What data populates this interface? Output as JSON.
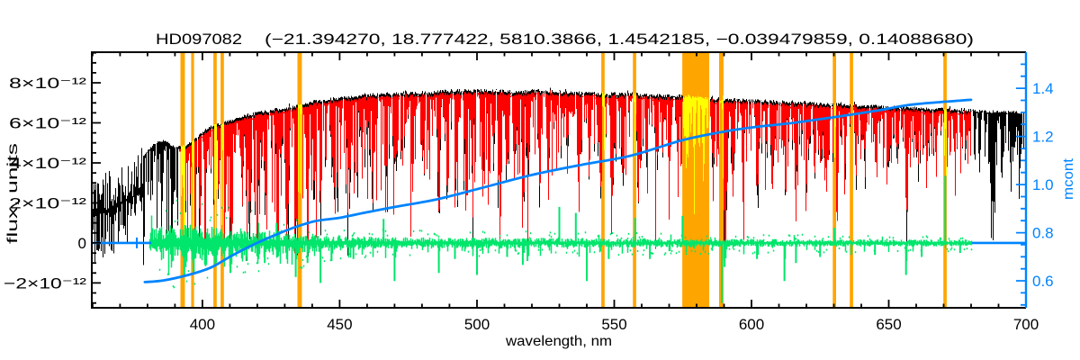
{
  "chart_data": {
    "type": "line",
    "title": "HD097082    (−21.394270, 18.777422, 5810.3866, 1.4542185, −0.039479859, 0.14088680)",
    "title_name": "HD097082",
    "title_params": "(−21.394270, 18.777422, 5810.3866, 1.4542185, −0.039479859, 0.14088680)",
    "xlabel": "wavelength, nm",
    "ylabel": "flux, units",
    "y2label": "mcont",
    "legend": "none",
    "grid": "off",
    "axes": {
      "x": {
        "range": [
          359.7,
          700
        ],
        "major_ticks": [
          400,
          450,
          500,
          550,
          600,
          650,
          700
        ],
        "minor_step": 10,
        "color": "#000000"
      },
      "y": {
        "range_e12": [
          -3.24,
          9.53
        ],
        "major_ticks_e12": [
          -2,
          0,
          2,
          4,
          6,
          8
        ],
        "labels": [
          "−2×10⁻¹²",
          "0",
          "2×10⁻¹²",
          "4×10⁻¹²",
          "6×10⁻¹²",
          "8×10⁻¹²"
        ],
        "minor_step_e12": 0.5,
        "color": "#000000"
      },
      "y2": {
        "range": [
          0.488,
          1.55
        ],
        "major_ticks": [
          0.6,
          0.8,
          1.0,
          1.2,
          1.4
        ],
        "labels": [
          "0.6",
          "0.8",
          "1.0",
          "1.2",
          "1.4"
        ],
        "minor_step": 0.05,
        "color": "#0084FF"
      }
    },
    "colors": {
      "observed": "#000000",
      "fit": "#FF0000",
      "residual": "#00E56B",
      "continuum": "#0084FF",
      "mask": "#FFA500",
      "masked_spectrum": "#FFFF00",
      "frame": "#000000",
      "background": "#FFFFFF"
    },
    "masked_windows_nm": [
      {
        "from": 392.0,
        "to": 393.6
      },
      {
        "from": 395.9,
        "to": 396.9
      },
      {
        "from": 404.0,
        "to": 405.2
      },
      {
        "from": 406.6,
        "to": 407.8
      },
      {
        "from": 434.6,
        "to": 436.2
      },
      {
        "from": 545.3,
        "to": 546.5
      },
      {
        "from": 556.8,
        "to": 558.0
      },
      {
        "from": 574.8,
        "to": 584.6
      },
      {
        "from": 588.2,
        "to": 589.8
      },
      {
        "from": 629.6,
        "to": 630.8
      },
      {
        "from": 635.8,
        "to": 637.0
      },
      {
        "from": 669.9,
        "to": 671.1
      }
    ],
    "series": {
      "observed": {
        "x_from": 359.7,
        "x_to": 700,
        "blob_end_nm": 378.2,
        "blob_center": [
          [
            360,
            1.3
          ],
          [
            366,
            1.7
          ],
          [
            372,
            2.1
          ],
          [
            378,
            2.5
          ]
        ],
        "blob_hi_amp": [
          [
            360,
            2.0
          ],
          [
            378,
            2.3
          ]
        ],
        "blob_lo_amp": [
          [
            360,
            2.6
          ],
          [
            378,
            2.2
          ]
        ],
        "envelope_nm_flux_e12": [
          [
            360,
            2.4
          ],
          [
            365,
            2.9
          ],
          [
            370,
            3.3
          ],
          [
            375,
            3.9
          ],
          [
            378,
            4.3
          ],
          [
            380,
            4.6
          ],
          [
            383,
            5.05
          ],
          [
            386,
            5.1
          ],
          [
            390,
            4.75
          ],
          [
            394,
            4.9
          ],
          [
            398,
            5.3
          ],
          [
            402,
            5.75
          ],
          [
            406,
            5.95
          ],
          [
            410,
            6.1
          ],
          [
            415,
            6.35
          ],
          [
            420,
            6.5
          ],
          [
            426,
            6.65
          ],
          [
            432,
            6.75
          ],
          [
            438,
            7.0
          ],
          [
            444,
            7.15
          ],
          [
            450,
            7.25
          ],
          [
            456,
            7.3
          ],
          [
            462,
            7.4
          ],
          [
            468,
            7.45
          ],
          [
            475,
            7.5
          ],
          [
            482,
            7.5
          ],
          [
            490,
            7.6
          ],
          [
            498,
            7.6
          ],
          [
            506,
            7.6
          ],
          [
            514,
            7.55
          ],
          [
            522,
            7.6
          ],
          [
            530,
            7.55
          ],
          [
            538,
            7.5
          ],
          [
            546,
            7.45
          ],
          [
            554,
            7.45
          ],
          [
            562,
            7.4
          ],
          [
            570,
            7.35
          ],
          [
            578,
            7.3
          ],
          [
            586,
            7.2
          ],
          [
            594,
            7.15
          ],
          [
            602,
            7.1
          ],
          [
            610,
            7.05
          ],
          [
            618,
            7.0
          ],
          [
            626,
            6.95
          ],
          [
            634,
            6.9
          ],
          [
            642,
            6.85
          ],
          [
            650,
            6.8
          ],
          [
            658,
            6.75
          ],
          [
            666,
            6.7
          ],
          [
            674,
            6.65
          ],
          [
            682,
            6.6
          ],
          [
            690,
            6.55
          ],
          [
            700,
            6.5
          ]
        ],
        "line_crowding": [
          [
            378,
            0.92
          ],
          [
            395,
            0.95
          ],
          [
            415,
            0.92
          ],
          [
            435,
            0.88
          ],
          [
            455,
            0.75
          ],
          [
            475,
            0.65
          ],
          [
            500,
            0.58
          ],
          [
            530,
            0.52
          ],
          [
            560,
            0.48
          ],
          [
            600,
            0.44
          ],
          [
            640,
            0.4
          ],
          [
            680,
            0.38
          ],
          [
            700,
            0.4
          ]
        ]
      },
      "fit": {
        "x_from": 391.2,
        "x_to": 680.2,
        "top_offset_e12": 0.14
      },
      "residual": {
        "x_from": 380.5,
        "x_to": 680.2,
        "level_e12": 0,
        "amplitude_e12": [
          [
            380,
            0.75
          ],
          [
            392,
            0.95
          ],
          [
            402,
            0.9
          ],
          [
            412,
            0.75
          ],
          [
            422,
            0.65
          ],
          [
            432,
            0.55
          ],
          [
            442,
            0.45
          ],
          [
            452,
            0.38
          ],
          [
            465,
            0.3
          ],
          [
            480,
            0.28
          ],
          [
            500,
            0.27
          ],
          [
            520,
            0.26
          ],
          [
            545,
            0.24
          ],
          [
            570,
            0.22
          ],
          [
            600,
            0.2
          ],
          [
            630,
            0.19
          ],
          [
            660,
            0.18
          ],
          [
            680,
            0.17
          ]
        ],
        "spikes_nm_value_e12": [
          [
            393.4,
            -1.7
          ],
          [
            396.8,
            -1.5
          ],
          [
            400.9,
            -1.1
          ],
          [
            404.6,
            -1.2
          ],
          [
            410.2,
            -1.5
          ],
          [
            416,
            -0.9
          ],
          [
            422.7,
            -1.0
          ],
          [
            427,
            1.0
          ],
          [
            434,
            -1.7
          ],
          [
            438.3,
            -1.0
          ],
          [
            443,
            -2.0
          ],
          [
            447,
            -0.9
          ],
          [
            455,
            -0.8
          ],
          [
            466,
            1.2
          ],
          [
            470,
            -1.9
          ],
          [
            486.1,
            -1.5
          ],
          [
            492,
            -0.8
          ],
          [
            500,
            -1.6
          ],
          [
            511,
            -0.7
          ],
          [
            516.7,
            -1.1
          ],
          [
            518.4,
            -0.9
          ],
          [
            530,
            1.8
          ],
          [
            536,
            1.5
          ],
          [
            540,
            -1.9
          ],
          [
            548,
            -0.8
          ],
          [
            557.7,
            1.25
          ],
          [
            563,
            -0.8
          ],
          [
            574.9,
            1.35
          ],
          [
            589.2,
            -3.0
          ],
          [
            590.2,
            -1.2
          ],
          [
            602,
            -0.8
          ],
          [
            612,
            -1.9
          ],
          [
            616.2,
            -1.0
          ],
          [
            625,
            -0.7
          ],
          [
            630.2,
            0.75
          ],
          [
            636.4,
            -0.6
          ],
          [
            645,
            -0.6
          ],
          [
            656.3,
            -1.6
          ],
          [
            662,
            -0.7
          ],
          [
            670.6,
            3.35
          ],
          [
            676,
            -0.5
          ]
        ]
      },
      "continuum": {
        "points_nm_mcont": [
          [
            379,
            0.595
          ],
          [
            386,
            0.602
          ],
          [
            395,
            0.625
          ],
          [
            403,
            0.655
          ],
          [
            410,
            0.7
          ],
          [
            417,
            0.742
          ],
          [
            425,
            0.783
          ],
          [
            433,
            0.82
          ],
          [
            441,
            0.848
          ],
          [
            450,
            0.862
          ],
          [
            460,
            0.885
          ],
          [
            470,
            0.907
          ],
          [
            486,
            0.94
          ],
          [
            503,
            0.99
          ],
          [
            520,
            1.04
          ],
          [
            538,
            1.082
          ],
          [
            556,
            1.12
          ],
          [
            575,
            1.185
          ],
          [
            590,
            1.22
          ],
          [
            602,
            1.24
          ],
          [
            615,
            1.256
          ],
          [
            630,
            1.28
          ],
          [
            645,
            1.306
          ],
          [
            657,
            1.33
          ],
          [
            668,
            1.342
          ],
          [
            680,
            1.352
          ]
        ],
        "flat_left": {
          "from_nm": 359.7,
          "to_nm": 381.4,
          "level_flux_e12": 0,
          "marker_nm": 376.1
        },
        "flat_right": {
          "from_nm": 680.3,
          "to_nm": 700,
          "level_flux_e12": 0
        }
      }
    },
    "absorption_lines_nm_depth": [
      [
        385,
        0.6
      ],
      [
        388.9,
        0.85
      ],
      [
        393.4,
        0.93
      ],
      [
        396.8,
        0.92
      ],
      [
        400.9,
        0.8
      ],
      [
        404.6,
        0.8
      ],
      [
        407.8,
        0.78
      ],
      [
        410.2,
        0.88
      ],
      [
        414.4,
        0.6
      ],
      [
        417,
        0.55
      ],
      [
        420.2,
        0.6
      ],
      [
        422.7,
        0.8
      ],
      [
        427.2,
        0.65
      ],
      [
        430.8,
        0.72
      ],
      [
        434,
        0.88
      ],
      [
        438.3,
        0.75
      ],
      [
        440.5,
        0.6
      ],
      [
        447,
        0.55
      ],
      [
        452.9,
        0.5
      ],
      [
        458,
        0.45
      ],
      [
        462,
        0.5
      ],
      [
        466.8,
        0.55
      ],
      [
        470.3,
        0.45
      ],
      [
        476.3,
        0.5
      ],
      [
        480,
        0.45
      ],
      [
        486.1,
        0.85
      ],
      [
        489.1,
        0.5
      ],
      [
        492.4,
        0.45
      ],
      [
        495.7,
        0.5
      ],
      [
        498.2,
        0.55
      ],
      [
        501.8,
        0.5
      ],
      [
        504.2,
        0.45
      ],
      [
        508,
        0.5
      ],
      [
        511,
        0.45
      ],
      [
        513.9,
        0.4
      ],
      [
        516.7,
        0.65
      ],
      [
        518.4,
        0.65
      ],
      [
        522.7,
        0.5
      ],
      [
        526,
        0.55
      ],
      [
        532.8,
        0.5
      ],
      [
        537.1,
        0.45
      ],
      [
        541,
        0.4
      ],
      [
        544.7,
        0.45
      ],
      [
        549,
        0.4
      ],
      [
        552.8,
        0.5
      ],
      [
        558.8,
        0.42
      ],
      [
        561.6,
        0.45
      ],
      [
        565,
        0.38
      ],
      [
        570,
        0.4
      ],
      [
        573,
        0.42
      ],
      [
        576.2,
        0.45
      ],
      [
        579.1,
        0.42
      ],
      [
        582.4,
        0.4
      ],
      [
        585.7,
        0.42
      ],
      [
        590,
        0.78
      ],
      [
        590.7,
        0.68
      ],
      [
        593,
        0.4
      ],
      [
        597,
        0.42
      ],
      [
        602.1,
        0.45
      ],
      [
        607.5,
        0.4
      ],
      [
        612.2,
        0.45
      ],
      [
        616.2,
        0.5
      ],
      [
        620,
        0.38
      ],
      [
        623,
        0.45
      ],
      [
        627,
        0.4
      ],
      [
        631,
        0.38
      ],
      [
        634,
        0.4
      ],
      [
        638,
        0.36
      ],
      [
        641,
        0.38
      ],
      [
        645,
        0.35
      ],
      [
        649.7,
        0.4
      ],
      [
        653,
        0.35
      ],
      [
        656.3,
        0.82
      ],
      [
        660.5,
        0.35
      ],
      [
        664,
        0.32
      ],
      [
        667,
        0.3
      ],
      [
        671,
        0.3
      ],
      [
        674,
        0.3
      ],
      [
        678,
        0.28
      ],
      [
        683,
        0.3
      ],
      [
        686.9,
        0.5
      ],
      [
        687.7,
        0.55
      ],
      [
        688.4,
        0.5
      ],
      [
        691,
        0.35
      ],
      [
        694.5,
        0.35
      ],
      [
        697.5,
        0.3
      ]
    ]
  }
}
